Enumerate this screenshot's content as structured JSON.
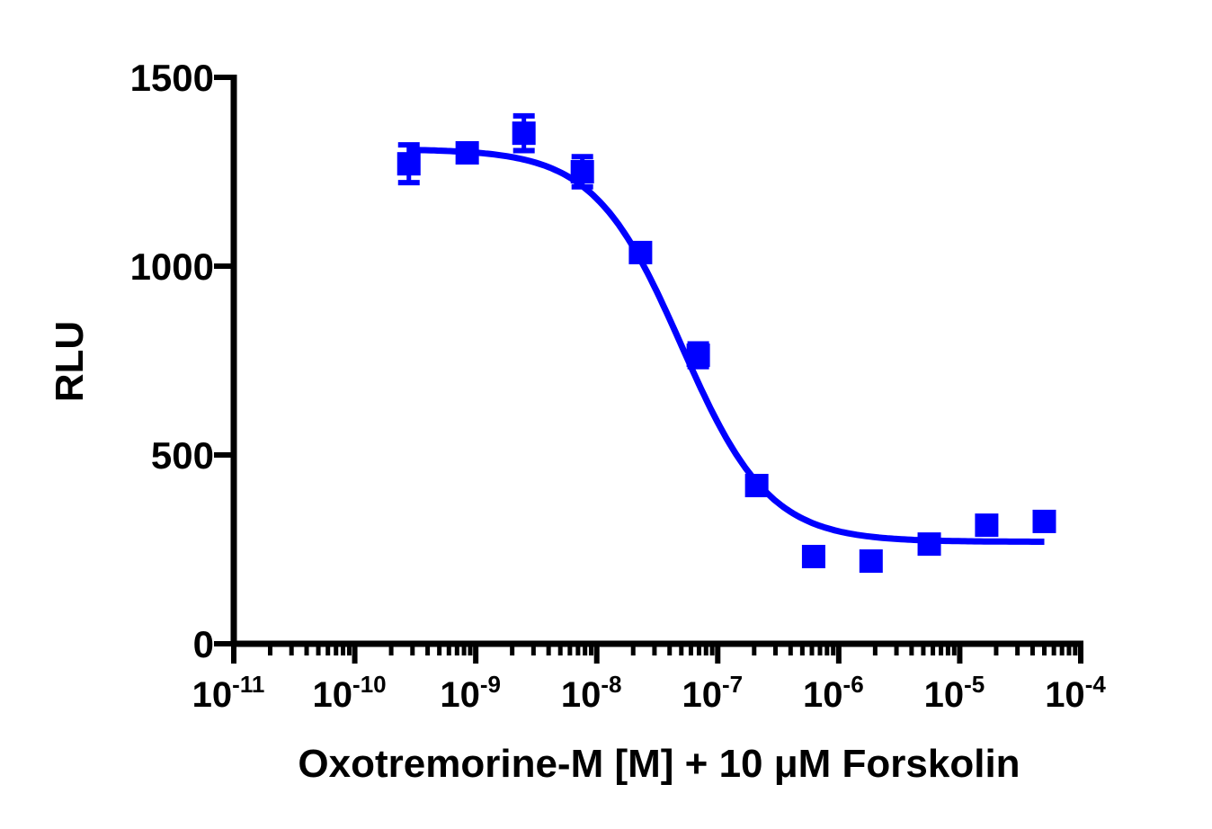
{
  "chart_data": {
    "type": "scatter",
    "title": "",
    "xlabel": "Oxotremorine-M [M] + 10 μM Forskolin",
    "ylabel": "RLU",
    "x_scale": "log",
    "xlim": [
      1e-11,
      0.0001
    ],
    "ylim": [
      0,
      1500
    ],
    "yticks": [
      0,
      500,
      1000,
      1500
    ],
    "ytick_labels": [
      "0",
      "500",
      "1000",
      "1500"
    ],
    "xticks": [
      {
        "base": "10",
        "exp": "-11"
      },
      {
        "base": "10",
        "exp": "-10"
      },
      {
        "base": "10",
        "exp": "-9"
      },
      {
        "base": "10",
        "exp": "-8"
      },
      {
        "base": "10",
        "exp": "-7"
      },
      {
        "base": "10",
        "exp": "-6"
      },
      {
        "base": "10",
        "exp": "-5"
      },
      {
        "base": "10",
        "exp": "-4"
      }
    ],
    "grid": false,
    "color": "#0000FF",
    "points": [
      {
        "x": 2.8e-10,
        "y": 1271,
        "err": 50
      },
      {
        "x": 8.5e-10,
        "y": 1300,
        "err": 0
      },
      {
        "x": 2.5e-09,
        "y": 1352,
        "err": 46
      },
      {
        "x": 7.6e-09,
        "y": 1250,
        "err": 40
      },
      {
        "x": 2.3e-08,
        "y": 1036,
        "err": 0
      },
      {
        "x": 6.9e-08,
        "y": 764,
        "err": 30
      },
      {
        "x": 2.1e-07,
        "y": 419,
        "err": 0
      },
      {
        "x": 6.2e-07,
        "y": 231,
        "err": 0
      },
      {
        "x": 1.85e-06,
        "y": 219,
        "err": 0
      },
      {
        "x": 5.6e-06,
        "y": 264,
        "err": 0
      },
      {
        "x": 1.67e-05,
        "y": 314,
        "err": 0
      },
      {
        "x": 5e-05,
        "y": 324,
        "err": 0
      }
    ],
    "fit": {
      "model": "4PL",
      "top": 1310,
      "bottom": 270,
      "logIC50": -7.3,
      "hill": 1.2,
      "x_range": [
        2.8e-10,
        5e-05
      ]
    }
  }
}
